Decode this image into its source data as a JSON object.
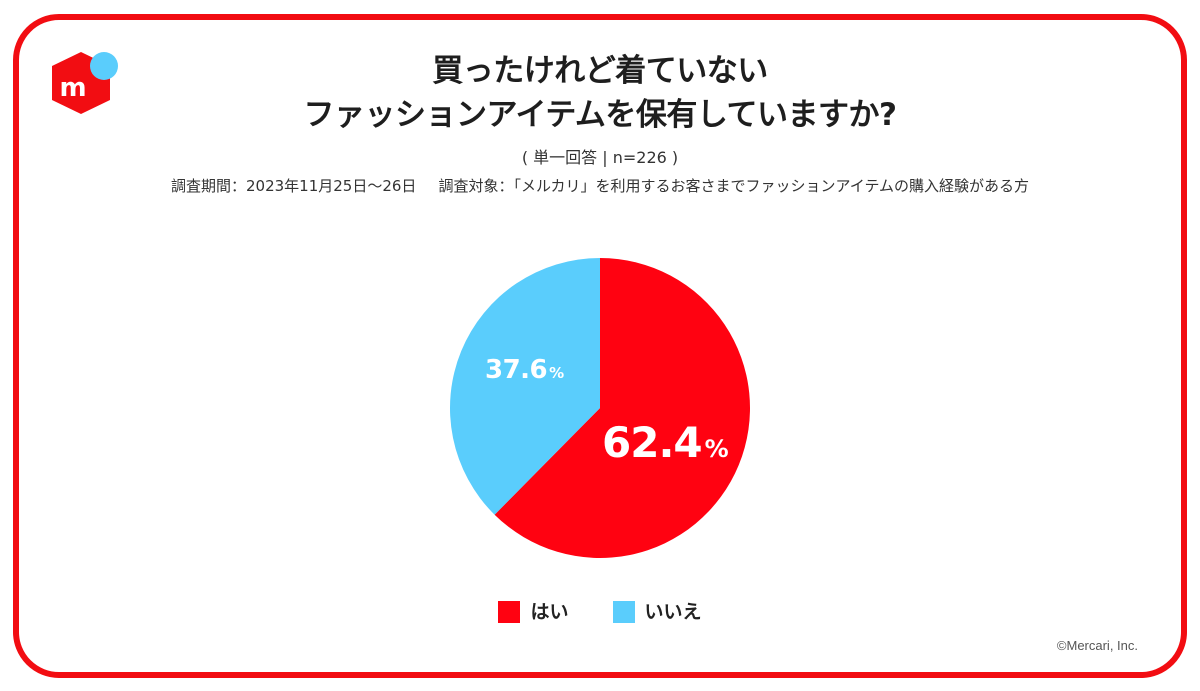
{
  "brand": {
    "logo": "mercari-logo-icon",
    "logo_letter": "m",
    "red": "#ff0211",
    "blue": "#5acdfc",
    "frame_color": "#f20d12"
  },
  "header": {
    "title_line1": "買ったけれど着ていない",
    "title_line2": "ファッションアイテムを保有していますか?",
    "subtitle": "( 単一回答 | n=226 )",
    "survey_period": "調査期間：2023年11月25日〜26日",
    "survey_target": "調査対象：「メルカリ」を利用するお客さまでファッションアイテムの購入経験がある方"
  },
  "chart_data": {
    "type": "pie",
    "title": "買ったけれど着ていないファッションアイテムを保有していますか?",
    "subtitle": "( 単一回答 | n=226 )",
    "categories": [
      "はい",
      "いいえ"
    ],
    "values": [
      62.4,
      37.6
    ],
    "colors": [
      "#ff0211",
      "#5acdfc"
    ],
    "unit": "%",
    "start_angle_deg": 0,
    "direction": "clockwise",
    "labels": [
      {
        "category": "はい",
        "value": "62.4",
        "unit": "%"
      },
      {
        "category": "いいえ",
        "value": "37.6",
        "unit": "%"
      }
    ],
    "legend_position": "bottom",
    "n": 226
  },
  "legend": {
    "items": [
      {
        "label": "はい",
        "color": "#ff0211"
      },
      {
        "label": "いいえ",
        "color": "#5acdfc"
      }
    ]
  },
  "footer": {
    "copyright": "©Mercari, Inc."
  }
}
